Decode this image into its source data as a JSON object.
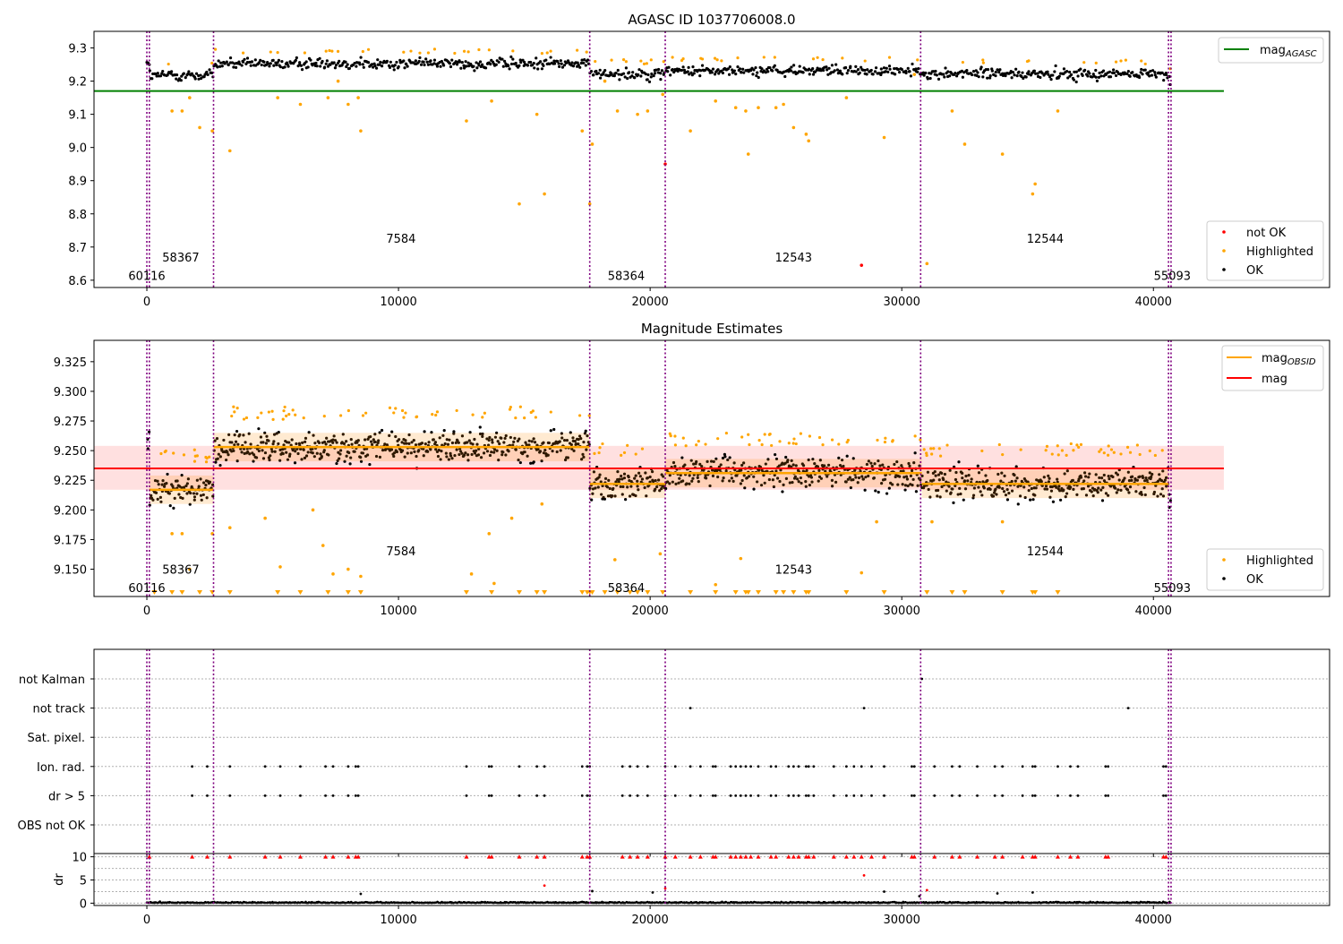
{
  "colors": {
    "ok": "#000000",
    "highlighted": "#ffa500",
    "not_ok": "#ff0000",
    "agasc_line": "#008000",
    "mag_line": "#ff0000",
    "mag_obsid": "#ffa500",
    "obs_boundary": "#800080"
  },
  "chart_data": [
    {
      "type": "scatter",
      "title": "AGASC ID 1037706008.0",
      "xlim": [
        -2100,
        47000
      ],
      "ylim": [
        8.578,
        9.35
      ],
      "xticks": [
        0,
        10000,
        20000,
        30000,
        40000
      ],
      "xtick_labels": [
        "0",
        "10000",
        "20000",
        "30000",
        "40000"
      ],
      "yticks": [
        8.6,
        8.7,
        8.8,
        8.9,
        9.0,
        9.1,
        9.2,
        9.3
      ],
      "ytick_labels": [
        "8.6",
        "8.7",
        "8.8",
        "8.9",
        "9.0",
        "9.1",
        "9.2",
        "9.3"
      ],
      "mag_agasc": 9.17,
      "mag_agasc_xrange": [
        -2100,
        42800
      ],
      "legend_top": [
        {
          "name": "mag_AGASC",
          "main": "mag",
          "sub": "AGASC",
          "color": "#008000",
          "kind": "line"
        }
      ],
      "legend_bottom": [
        {
          "name": "not OK",
          "color": "#ff0000",
          "kind": "dot"
        },
        {
          "name": "Highlighted",
          "color": "#ffa500",
          "kind": "dot"
        },
        {
          "name": "OK",
          "color": "#000000",
          "kind": "dot"
        }
      ],
      "obs_labels": [
        {
          "text": "60116",
          "x": 0,
          "y": 8.614
        },
        {
          "text": "58367",
          "x": 1350,
          "y": 8.67
        },
        {
          "text": "7584",
          "x": 10100,
          "y": 8.726
        },
        {
          "text": "58364",
          "x": 19050,
          "y": 8.614
        },
        {
          "text": "12543",
          "x": 25700,
          "y": 8.67
        },
        {
          "text": "12544",
          "x": 35700,
          "y": 8.726
        },
        {
          "text": "55093",
          "x": 40750,
          "y": 8.614
        }
      ],
      "highlighted_points": [
        [
          1000,
          9.11
        ],
        [
          1400,
          9.11
        ],
        [
          1700,
          9.15
        ],
        [
          2100,
          9.06
        ],
        [
          2600,
          9.05
        ],
        [
          3300,
          8.99
        ],
        [
          5200,
          9.15
        ],
        [
          6100,
          9.13
        ],
        [
          7200,
          9.15
        ],
        [
          7600,
          9.2
        ],
        [
          8000,
          9.13
        ],
        [
          8400,
          9.15
        ],
        [
          8500,
          9.05
        ],
        [
          12700,
          9.08
        ],
        [
          13700,
          9.14
        ],
        [
          14800,
          8.83
        ],
        [
          15500,
          9.1
        ],
        [
          15800,
          8.86
        ],
        [
          17300,
          9.05
        ],
        [
          17600,
          8.83
        ],
        [
          17700,
          9.01
        ],
        [
          18200,
          9.2
        ],
        [
          18700,
          9.11
        ],
        [
          19500,
          9.1
        ],
        [
          19900,
          9.11
        ],
        [
          20500,
          9.16
        ],
        [
          21600,
          9.05
        ],
        [
          22600,
          9.14
        ],
        [
          23400,
          9.12
        ],
        [
          23800,
          9.11
        ],
        [
          23900,
          8.98
        ],
        [
          24300,
          9.12
        ],
        [
          25000,
          9.12
        ],
        [
          25300,
          9.13
        ],
        [
          25700,
          9.06
        ],
        [
          26200,
          9.04
        ],
        [
          26300,
          9.02
        ],
        [
          27800,
          9.15
        ],
        [
          29300,
          9.03
        ],
        [
          30500,
          9.22
        ],
        [
          31000,
          8.65
        ],
        [
          32000,
          9.11
        ],
        [
          32500,
          9.01
        ],
        [
          34000,
          8.98
        ],
        [
          35200,
          8.86
        ],
        [
          35300,
          8.89
        ],
        [
          36200,
          9.11
        ]
      ],
      "not_ok_points": [
        [
          28400,
          8.645
        ],
        [
          20600,
          8.95
        ]
      ]
    },
    {
      "type": "scatter",
      "title": "Magnitude Estimates",
      "xlim": [
        -2100,
        47000
      ],
      "ylim": [
        9.127,
        9.343
      ],
      "xticks": [
        0,
        10000,
        20000,
        30000,
        40000
      ],
      "xtick_labels": [
        "0",
        "10000",
        "20000",
        "30000",
        "40000"
      ],
      "yticks": [
        9.15,
        9.175,
        9.2,
        9.225,
        9.25,
        9.275,
        9.3,
        9.325
      ],
      "ytick_labels": [
        "9.150",
        "9.175",
        "9.200",
        "9.225",
        "9.250",
        "9.275",
        "9.300",
        "9.325"
      ],
      "mag": 9.235,
      "mag_band": [
        9.217,
        9.254
      ],
      "mag_xrange": [
        -2100,
        42800
      ],
      "mag_obsid": [
        {
          "x0": 100,
          "x1": 2650,
          "y": 9.217
        },
        {
          "x0": 2650,
          "x1": 17600,
          "y": 9.253
        },
        {
          "x0": 17600,
          "x1": 20600,
          "y": 9.222
        },
        {
          "x0": 20600,
          "x1": 30800,
          "y": 9.231
        },
        {
          "x0": 30800,
          "x1": 40600,
          "y": 9.222
        }
      ],
      "legend_top": [
        {
          "name": "mag_OBSID",
          "main": "mag",
          "sub": "OBSID",
          "color": "#ffa500",
          "kind": "line"
        },
        {
          "name": "mag",
          "main": "mag",
          "sub": "",
          "color": "#ff0000",
          "kind": "line"
        }
      ],
      "legend_bottom": [
        {
          "name": "Highlighted",
          "color": "#ffa500",
          "kind": "dot"
        },
        {
          "name": "OK",
          "color": "#000000",
          "kind": "dot"
        }
      ],
      "obs_labels": [
        {
          "text": "60116",
          "x": 0,
          "y": 9.1345
        },
        {
          "text": "58367",
          "x": 1350,
          "y": 9.15
        },
        {
          "text": "7584",
          "x": 10100,
          "y": 9.1655
        },
        {
          "text": "58364",
          "x": 19050,
          "y": 9.1345
        },
        {
          "text": "12543",
          "x": 25700,
          "y": 9.15
        },
        {
          "text": "12544",
          "x": 35700,
          "y": 9.1655
        },
        {
          "text": "55093",
          "x": 40750,
          "y": 9.1345
        }
      ],
      "highlighted_points": [
        [
          1000,
          9.18
        ],
        [
          1400,
          9.18
        ],
        [
          1700,
          9.15
        ],
        [
          2600,
          9.18
        ],
        [
          3300,
          9.185
        ],
        [
          4700,
          9.193
        ],
        [
          5300,
          9.152
        ],
        [
          6600,
          9.2
        ],
        [
          7000,
          9.17
        ],
        [
          7400,
          9.146
        ],
        [
          8000,
          9.15
        ],
        [
          8500,
          9.144
        ],
        [
          12900,
          9.146
        ],
        [
          13600,
          9.18
        ],
        [
          13800,
          9.138
        ],
        [
          14500,
          9.193
        ],
        [
          15700,
          9.205
        ],
        [
          18600,
          9.158
        ],
        [
          20400,
          9.163
        ],
        [
          22600,
          9.137
        ],
        [
          23600,
          9.159
        ],
        [
          28400,
          9.147
        ],
        [
          29000,
          9.19
        ],
        [
          31200,
          9.19
        ],
        [
          34000,
          9.19
        ]
      ],
      "clipped_markers_x": [
        300,
        1000,
        1400,
        2100,
        2600,
        3300,
        5200,
        6100,
        7200,
        8000,
        8500,
        12700,
        13700,
        14800,
        15500,
        15800,
        17300,
        17500,
        17600,
        17700,
        18200,
        18700,
        19200,
        19500,
        19900,
        20500,
        21600,
        22600,
        23400,
        23800,
        23900,
        24300,
        25000,
        25300,
        25700,
        26200,
        26300,
        27800,
        29300,
        31000,
        32000,
        32500,
        34000,
        35200,
        35300,
        36200
      ]
    },
    {
      "type": "scatter",
      "title": "",
      "xlim": [
        -2100,
        47000
      ],
      "categories": [
        "not Kalman",
        "not track",
        "Sat. pixel.",
        "Ion. rad.",
        "dr > 5",
        "OBS not OK"
      ],
      "xticks": [
        0,
        10000,
        20000,
        30000,
        40000
      ],
      "xtick_labels": [
        "0",
        "10000",
        "20000",
        "30000",
        "40000"
      ],
      "flag_points": {
        "not Kalman": [
          30800
        ],
        "not track": [
          21600,
          28500,
          39000
        ],
        "Sat. pixel.": [],
        "Ion. rad.": [
          1800,
          2400,
          3300,
          4700,
          5300,
          6100,
          7100,
          7400,
          8000,
          8300,
          8400,
          12700,
          13600,
          13700,
          14800,
          15500,
          15800,
          17300,
          17500,
          17600,
          18900,
          19200,
          19500,
          19900,
          20600,
          21000,
          21600,
          22000,
          22500,
          22600,
          23200,
          23400,
          23600,
          23800,
          24000,
          24300,
          24800,
          25000,
          25500,
          25700,
          25900,
          26200,
          26300,
          26500,
          27300,
          27800,
          28100,
          28400,
          28800,
          29300,
          30400,
          30500,
          31300,
          32000,
          32300,
          33000,
          33700,
          34000,
          34800,
          35200,
          35300,
          36200,
          36700,
          37000,
          38100,
          38200,
          40400,
          40500
        ],
        "dr > 5": [
          1800,
          2400,
          3300,
          4700,
          5300,
          6100,
          7100,
          7400,
          8000,
          8300,
          8400,
          12700,
          13600,
          13700,
          14800,
          15500,
          15800,
          17300,
          17500,
          17600,
          18900,
          19200,
          19500,
          19900,
          20600,
          21000,
          21600,
          22000,
          22500,
          22600,
          23200,
          23400,
          23600,
          23800,
          24000,
          24300,
          24800,
          25000,
          25500,
          25700,
          25900,
          26200,
          26300,
          26500,
          27300,
          27800,
          28100,
          28400,
          28800,
          29300,
          30400,
          30500,
          31300,
          32000,
          32300,
          33000,
          33700,
          34000,
          34800,
          35200,
          35300,
          36200,
          36700,
          37000,
          38100,
          38200,
          40400,
          40500
        ],
        "OBS not OK": []
      }
    },
    {
      "type": "scatter",
      "title": "",
      "ylabel": "dr",
      "xlim": [
        -2100,
        47000
      ],
      "ylim": [
        -0.5,
        10.7
      ],
      "xticks": [
        0,
        10000,
        20000,
        30000,
        40000
      ],
      "xtick_labels": [
        "0",
        "10000",
        "20000",
        "30000",
        "40000"
      ],
      "yticks": [
        0,
        5,
        10
      ],
      "ytick_labels": [
        "0",
        "5",
        "10"
      ],
      "clipped_dr_x": [
        100,
        1800,
        2400,
        3300,
        4700,
        5300,
        6100,
        7100,
        7400,
        8000,
        8300,
        8400,
        12700,
        13600,
        13700,
        14800,
        15500,
        15800,
        17300,
        17500,
        17600,
        18900,
        19200,
        19500,
        19900,
        20600,
        21000,
        21600,
        22000,
        22500,
        22600,
        23200,
        23400,
        23600,
        23800,
        24000,
        24300,
        24800,
        25000,
        25500,
        25700,
        25900,
        26200,
        26300,
        26500,
        27300,
        27800,
        28100,
        28400,
        28800,
        29300,
        30400,
        30500,
        31300,
        32000,
        32300,
        33000,
        33700,
        34000,
        34800,
        35200,
        35300,
        36200,
        36700,
        37000,
        38100,
        38200,
        40400,
        40500
      ],
      "red_points": [
        [
          28500,
          6
        ],
        [
          15800,
          3.8
        ],
        [
          31000,
          2.8
        ],
        [
          20600,
          3.2
        ]
      ],
      "black_points": [
        [
          8500,
          2
        ],
        [
          20100,
          2.3
        ],
        [
          29300,
          2.5
        ],
        [
          33800,
          2.1
        ],
        [
          35200,
          2.3
        ],
        [
          17700,
          2.6
        ],
        [
          30700,
          1.5
        ]
      ]
    }
  ],
  "obs_boundaries": [
    0,
    100,
    2650,
    17600,
    20600,
    30750,
    40600,
    40700
  ],
  "obs_levels": [
    {
      "x0": 0,
      "x1": 100,
      "center": 9.255
    },
    {
      "x0": 100,
      "x1": 2650,
      "center": 9.217
    },
    {
      "x0": 2650,
      "x1": 17600,
      "center": 9.253
    },
    {
      "x0": 17600,
      "x1": 20600,
      "center": 9.222
    },
    {
      "x0": 20600,
      "x1": 30750,
      "center": 9.231
    },
    {
      "x0": 30750,
      "x1": 40600,
      "center": 9.222
    },
    {
      "x0": 40600,
      "x1": 40700,
      "center": 9.205
    }
  ]
}
